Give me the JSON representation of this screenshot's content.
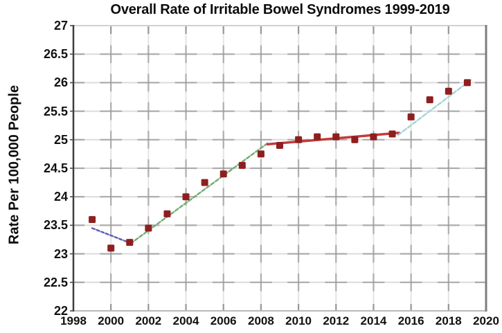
{
  "title": "Overall Rate of Irritable Bowel Syndromes 1999-2019",
  "chart_data": {
    "type": "scatter",
    "title": "Overall Rate of Irritable Bowel Syndromes 1999-2019",
    "xlabel": "",
    "ylabel": "Rate Per 100,000 People",
    "x": [
      1999,
      2000,
      2001,
      2002,
      2003,
      2004,
      2005,
      2006,
      2007,
      2008,
      2009,
      2010,
      2011,
      2012,
      2013,
      2014,
      2015,
      2016,
      2017,
      2018,
      2019
    ],
    "values": [
      23.6,
      23.1,
      23.2,
      23.45,
      23.7,
      24.0,
      24.25,
      24.4,
      24.55,
      24.75,
      24.9,
      25.0,
      25.05,
      25.05,
      25.0,
      25.05,
      25.1,
      25.4,
      25.7,
      25.85,
      26.0
    ],
    "xlim": [
      1998,
      2020
    ],
    "ylim": [
      22,
      27
    ],
    "x_ticks": [
      1998,
      2000,
      2002,
      2004,
      2006,
      2008,
      2010,
      2012,
      2014,
      2016,
      2018,
      2020
    ],
    "y_ticks": [
      22,
      22.5,
      23,
      23.5,
      24,
      24.5,
      25,
      25.5,
      26,
      26.5,
      27
    ],
    "grid": true,
    "legend": false,
    "point_color": "#8e1f1f",
    "trend_segments": [
      {
        "name": "trend-1999-2001-blue-dashed",
        "color": "#5f5fb8",
        "dash": "4 3",
        "width": 2.5,
        "x1": 1999.0,
        "y1": 23.45,
        "x2": 2001.1,
        "y2": 23.18
      },
      {
        "name": "trend-2001-2008-green-dashed",
        "color": "#74ad74",
        "dash": "5 3",
        "width": 2.5,
        "x1": 2001.05,
        "y1": 23.18,
        "x2": 2008.4,
        "y2": 24.95
      },
      {
        "name": "trend-2008-2015-red-solid",
        "color": "#c23b3b",
        "dash": "",
        "width": 3.5,
        "x1": 2008.35,
        "y1": 24.92,
        "x2": 2015.35,
        "y2": 25.12
      },
      {
        "name": "trend-2015-2019-cyan-dashed",
        "color": "#a6d4da",
        "dash": "6 3",
        "width": 2.5,
        "x1": 2015.3,
        "y1": 25.08,
        "x2": 2019.2,
        "y2": 26.05
      }
    ]
  }
}
